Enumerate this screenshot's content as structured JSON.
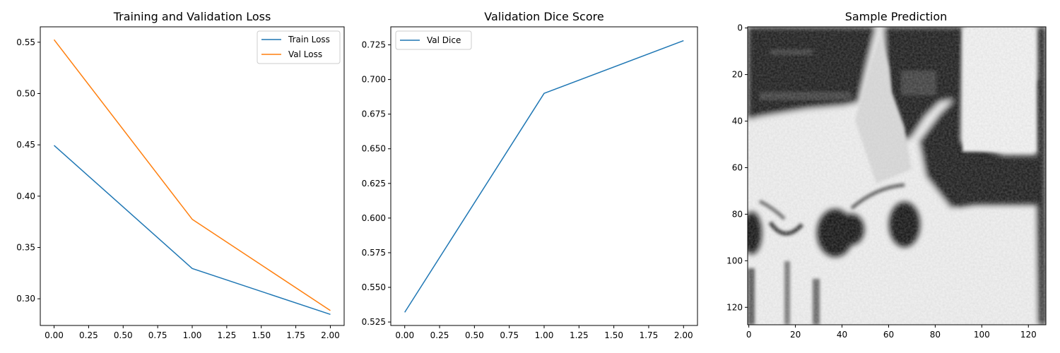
{
  "chart_data": [
    {
      "type": "line",
      "title": "Training and Validation Loss",
      "xlabel": "",
      "ylabel": "",
      "x": [
        0,
        1,
        2
      ],
      "xlim": [
        -0.1,
        2.1
      ],
      "ylim": [
        0.274,
        0.565
      ],
      "xticks": [
        0.0,
        0.25,
        0.5,
        0.75,
        1.0,
        1.25,
        1.5,
        1.75,
        2.0
      ],
      "xtick_labels": [
        "0.00",
        "0.25",
        "0.50",
        "0.75",
        "1.00",
        "1.25",
        "1.50",
        "1.75",
        "2.00"
      ],
      "yticks": [
        0.3,
        0.35,
        0.4,
        0.45,
        0.5,
        0.55
      ],
      "ytick_labels": [
        "0.30",
        "0.35",
        "0.40",
        "0.45",
        "0.50",
        "0.55"
      ],
      "grid": false,
      "legend": "top-right",
      "series": [
        {
          "name": "Train Loss",
          "values": [
            0.4495,
            0.3295,
            0.2848
          ],
          "color": "#1f77b4"
        },
        {
          "name": "Val Loss",
          "values": [
            0.5525,
            0.3775,
            0.2885
          ],
          "color": "#ff7f0e"
        }
      ]
    },
    {
      "type": "line",
      "title": "Validation Dice Score",
      "xlabel": "",
      "ylabel": "",
      "x": [
        0,
        1,
        2
      ],
      "xlim": [
        -0.1,
        2.1
      ],
      "ylim": [
        0.5225,
        0.738
      ],
      "xticks": [
        0.0,
        0.25,
        0.5,
        0.75,
        1.0,
        1.25,
        1.5,
        1.75,
        2.0
      ],
      "xtick_labels": [
        "0.00",
        "0.25",
        "0.50",
        "0.75",
        "1.00",
        "1.25",
        "1.50",
        "1.75",
        "2.00"
      ],
      "yticks": [
        0.525,
        0.55,
        0.575,
        0.6,
        0.625,
        0.65,
        0.675,
        0.7,
        0.725
      ],
      "ytick_labels": [
        "0.525",
        "0.550",
        "0.575",
        "0.600",
        "0.625",
        "0.650",
        "0.675",
        "0.700",
        "0.725"
      ],
      "grid": false,
      "legend": "top-left",
      "series": [
        {
          "name": "Val Dice",
          "values": [
            0.532,
            0.69,
            0.728
          ],
          "color": "#1f77b4"
        }
      ]
    },
    {
      "type": "heatmap",
      "title": "Sample Prediction",
      "colormap": "gray",
      "xlim": [
        -0.5,
        127.5
      ],
      "ylim": [
        127.5,
        -0.5
      ],
      "xticks": [
        0,
        20,
        40,
        60,
        80,
        100,
        120
      ],
      "xtick_labels": [
        "0",
        "20",
        "40",
        "60",
        "80",
        "100",
        "120"
      ],
      "yticks": [
        0,
        20,
        40,
        60,
        80,
        100,
        120
      ],
      "ytick_labels": [
        "0",
        "20",
        "40",
        "60",
        "80",
        "100",
        "120"
      ]
    }
  ]
}
